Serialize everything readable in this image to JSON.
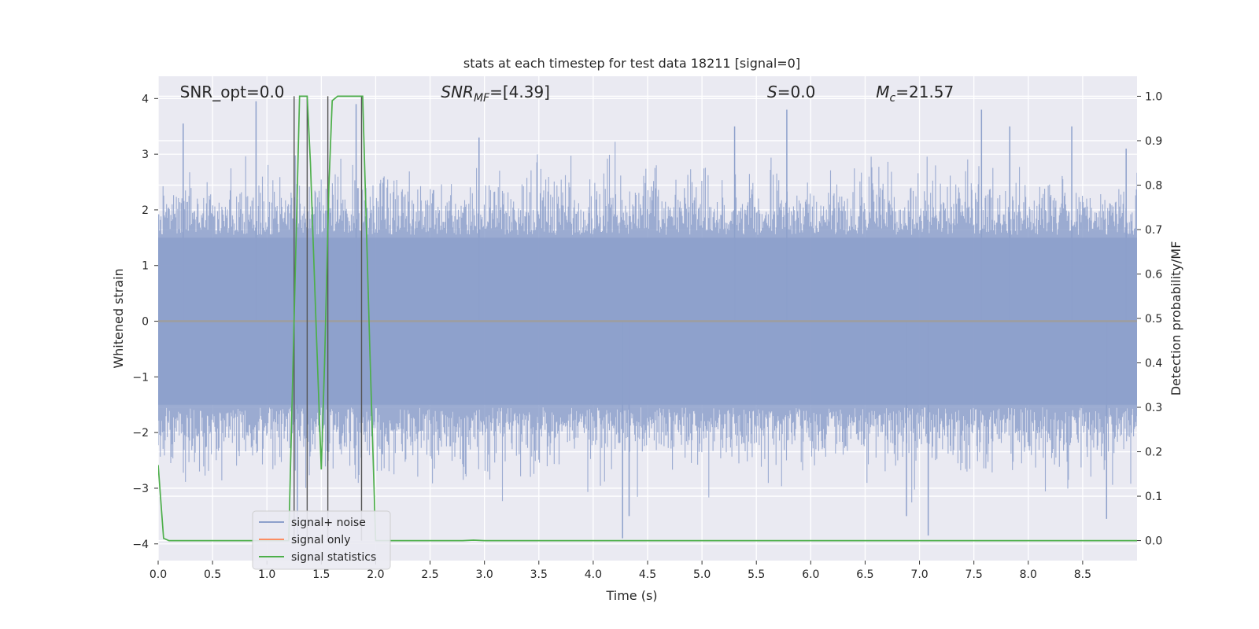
{
  "chart_data": {
    "type": "line",
    "title": "stats at each timestep for test data 18211 [signal=0]",
    "xlabel": "Time (s)",
    "ylabel_left": "Whitened strain",
    "ylabel_right": "Detection probability/MF",
    "xlim": [
      0.0,
      9.0
    ],
    "ylim_left": [
      -4.3,
      4.4
    ],
    "ylim_right": [
      -0.045,
      1.045
    ],
    "x_ticks": [
      "0.0",
      "0.5",
      "1.0",
      "1.5",
      "2.0",
      "2.5",
      "3.0",
      "3.5",
      "4.0",
      "4.5",
      "5.0",
      "5.5",
      "6.0",
      "6.5",
      "7.0",
      "7.5",
      "8.0",
      "8.5"
    ],
    "y_ticks_left": [
      "4",
      "3",
      "2",
      "1",
      "0",
      "−1",
      "−2",
      "−3",
      "−4"
    ],
    "y_ticks_right": [
      "1.0",
      "0.9",
      "0.8",
      "0.7",
      "0.6",
      "0.5",
      "0.4",
      "0.3",
      "0.2",
      "0.1",
      "0.0"
    ],
    "grid": true,
    "legend_position": "lower-left",
    "annotations": [
      {
        "text": "SNR_opt=0.0",
        "x": 0.2,
        "y": 4.1
      },
      {
        "text": "SNR",
        "sub": "MF",
        "rest": "=[4.39]",
        "x": 2.6,
        "y": 4.1
      },
      {
        "text": "S",
        "rest": "=0.0",
        "x": 5.6,
        "y": 4.1
      },
      {
        "text": "M",
        "sub": "c",
        "rest": "=21.57",
        "x": 6.6,
        "y": 4.1
      }
    ],
    "series": [
      {
        "name": "signal+ noise",
        "color": "#8da0cb",
        "axis": "left",
        "kind": "noise_envelope",
        "note": "whitened strain noise, roughly within ±2.5 with spikes to about ±4",
        "spikes_x": [
          0.23,
          0.9,
          1.28,
          1.82,
          2.95,
          4.27,
          4.33,
          5.3,
          5.78,
          6.88,
          7.08,
          7.57,
          7.83,
          8.4,
          8.72,
          8.9
        ],
        "spikes_y": [
          3.55,
          3.95,
          -3.9,
          3.9,
          3.3,
          -3.9,
          -3.5,
          3.5,
          3.8,
          -3.5,
          -3.85,
          3.8,
          3.5,
          3.5,
          -3.55,
          3.1
        ]
      },
      {
        "name": "signal only",
        "color": "#fc8d62",
        "axis": "left",
        "x": [
          0.0,
          9.0
        ],
        "y": [
          0.0,
          0.0
        ]
      },
      {
        "name": "signal statistics",
        "color": "#4daf4a",
        "axis": "right",
        "x": [
          0.0,
          0.05,
          0.1,
          0.15,
          0.2,
          0.3,
          0.5,
          0.8,
          1.0,
          1.1,
          1.2,
          1.25,
          1.3,
          1.33,
          1.37,
          1.4,
          1.45,
          1.5,
          1.53,
          1.57,
          1.6,
          1.65,
          1.7,
          1.75,
          1.8,
          1.88,
          1.95,
          2.0,
          2.05,
          2.2,
          2.5,
          2.8,
          2.9,
          3.0,
          3.5,
          4.0,
          5.0,
          6.0,
          7.0,
          8.0,
          9.0
        ],
        "y": [
          0.17,
          0.005,
          0.0,
          0.0,
          0.0,
          0.0,
          0.0,
          0.0,
          0.0,
          0.0,
          0.0,
          0.5,
          1.0,
          1.0,
          1.0,
          0.85,
          0.5,
          0.16,
          0.4,
          0.8,
          0.99,
          1.0,
          1.0,
          1.0,
          1.0,
          1.0,
          0.4,
          0.0,
          0.0,
          0.0,
          0.0,
          0.0,
          0.001,
          0.0,
          0.0,
          0.0,
          0.0,
          0.0,
          0.0,
          0.0,
          0.0
        ]
      }
    ],
    "vertical_markers_x": [
      1.25,
      1.37,
      1.56,
      1.87
    ]
  }
}
